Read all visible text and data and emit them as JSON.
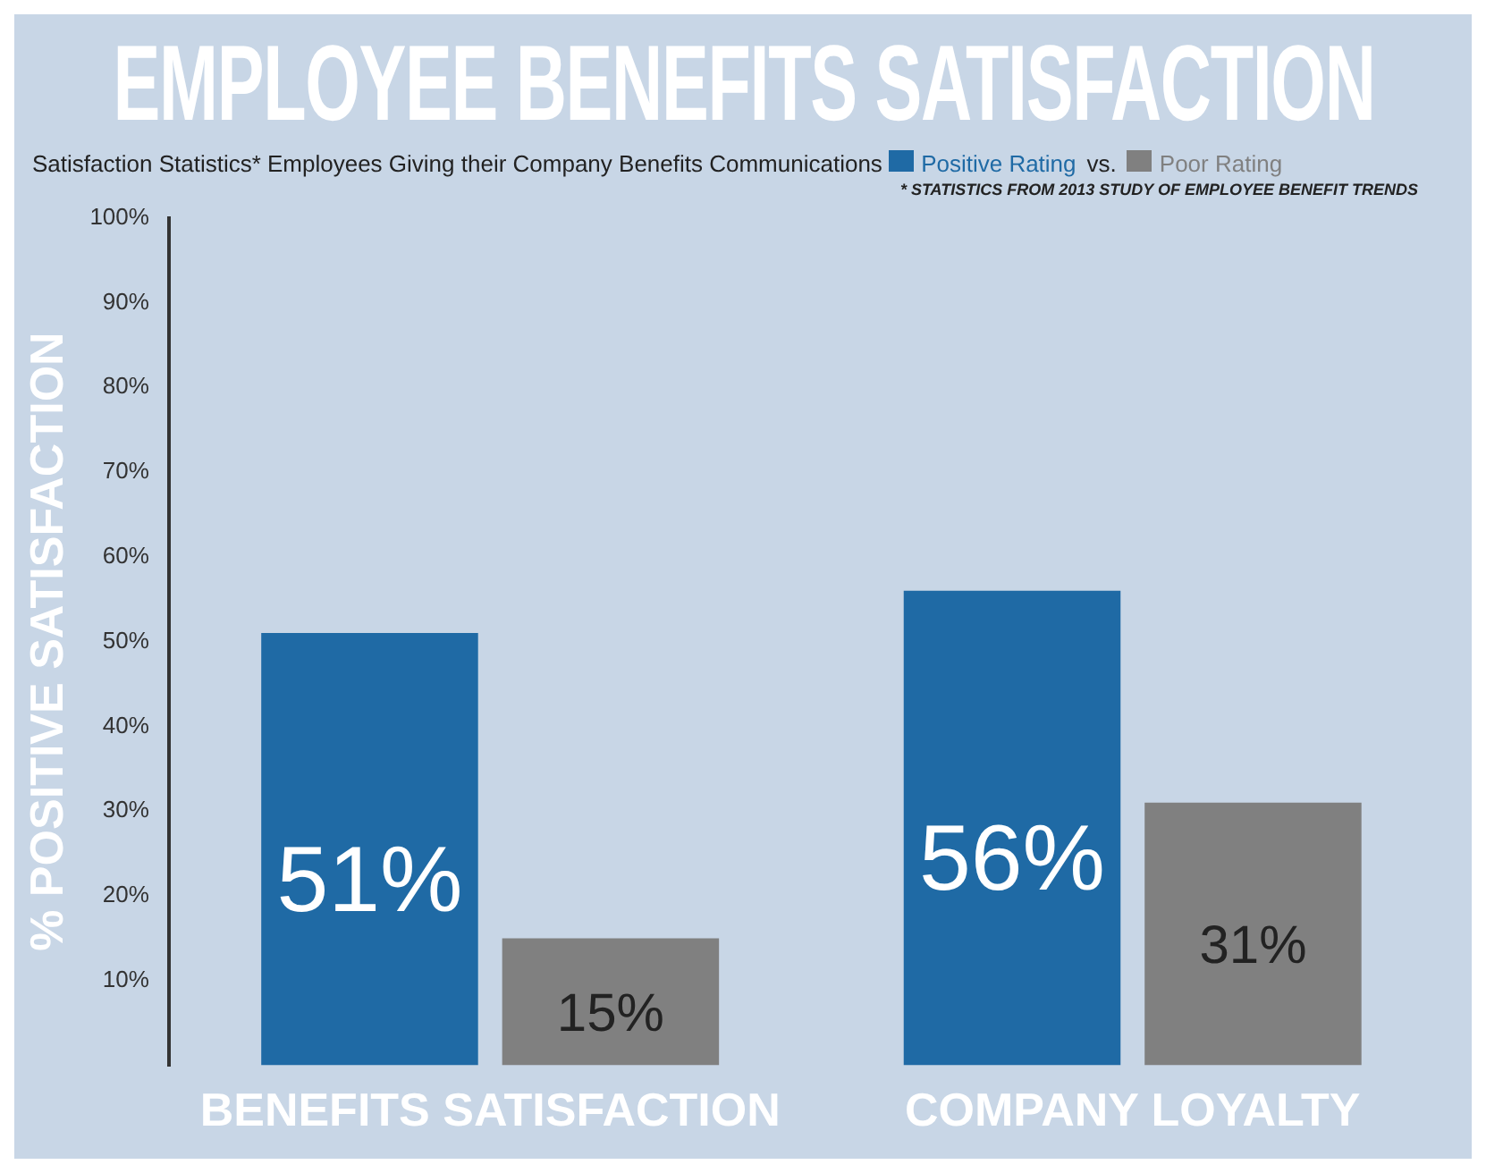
{
  "chart_data": {
    "type": "bar",
    "title": "EMPLOYEE BENEFITS SATISFACTION",
    "subtitle": "Satisfaction Statistics* Employees Giving their Company Benefits Communications",
    "ylabel": "% POSITIVE SATISFACTION",
    "annotations": [
      "vs.",
      "* STATISTICS FROM 2013 STUDY OF EMPLOYEE BENEFIT TRENDS"
    ],
    "categories": [
      "BENEFITS SATISFACTION",
      "COMPANY LOYALTY"
    ],
    "series": [
      {
        "name": "Positive Rating",
        "color": "#1f6aa5",
        "values": [
          51,
          56
        ],
        "value_labels": [
          "51%",
          "56%"
        ]
      },
      {
        "name": "Poor Rating",
        "color": "#808080",
        "values": [
          15,
          31
        ],
        "value_labels": [
          "15%",
          "31%"
        ]
      }
    ],
    "ylim": [
      0,
      100
    ],
    "yticks": [
      {
        "value": 10,
        "label": "10%"
      },
      {
        "value": 20,
        "label": "20%"
      },
      {
        "value": 30,
        "label": "30%"
      },
      {
        "value": 40,
        "label": "40%"
      },
      {
        "value": 50,
        "label": "50%"
      },
      {
        "value": 60,
        "label": "60%"
      },
      {
        "value": 70,
        "label": "70%"
      },
      {
        "value": 80,
        "label": "80%"
      },
      {
        "value": 90,
        "label": "90%"
      },
      {
        "value": 100,
        "label": "100%"
      }
    ],
    "grid": false,
    "legend": "top"
  }
}
